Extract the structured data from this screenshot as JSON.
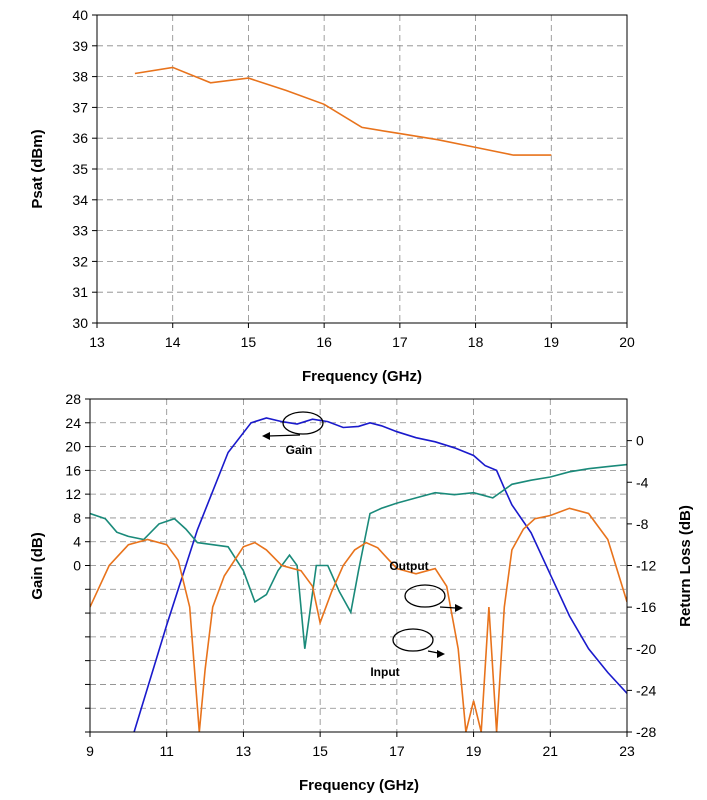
{
  "chart_data": [
    {
      "type": "line",
      "title": "",
      "xlabel": "Frequency (GHz)",
      "ylabel": "Psat (dBm)",
      "xlim": [
        13,
        20
      ],
      "ylim": [
        30,
        40
      ],
      "x_ticks": [
        "13",
        "14",
        "15",
        "16",
        "17",
        "18",
        "19",
        "20"
      ],
      "y_ticks": [
        "30",
        "31",
        "32",
        "33",
        "34",
        "35",
        "36",
        "37",
        "38",
        "39",
        "40"
      ],
      "grid": true,
      "series": [
        {
          "color": "#e8731c",
          "x": [
            13.5,
            14,
            14.5,
            15,
            15.5,
            16,
            16.5,
            17,
            17.5,
            18,
            18.5,
            19
          ],
          "y": [
            38.1,
            38.3,
            37.8,
            37.95,
            37.55,
            37.1,
            36.35,
            36.15,
            35.95,
            35.7,
            35.45,
            35.45
          ]
        }
      ]
    },
    {
      "type": "line",
      "title": "",
      "xlabel": "Frequency (GHz)",
      "ylabel": "Gain (dB)",
      "y2label": "Return Loss (dB)",
      "xlim": [
        9,
        23
      ],
      "ylim": [
        -28,
        28
      ],
      "y2lim": [
        -28,
        4
      ],
      "x_ticks": [
        "9",
        "11",
        "13",
        "15",
        "17",
        "19",
        "21",
        "23"
      ],
      "y_ticks": [
        "0",
        "4",
        "8",
        "12",
        "16",
        "20",
        "24",
        "28"
      ],
      "y2_ticks": [
        "0",
        "-4",
        "-8",
        "-12",
        "-16",
        "-20",
        "-24",
        "-28"
      ],
      "grid": true,
      "annotations": [
        "Gain",
        "Output",
        "Input"
      ],
      "series": [
        {
          "name": "Gain",
          "axis": "left",
          "color": "#1a1acc",
          "x": [
            10.15,
            11,
            11.8,
            12.6,
            13.2,
            13.6,
            14.0,
            14.4,
            14.8,
            15.2,
            15.6,
            16.0,
            16.3,
            16.6,
            17.0,
            17.5,
            18.0,
            18.5,
            19.0,
            19.3,
            19.6,
            19.8,
            20.0,
            20.5,
            21.0,
            21.5,
            22.0,
            22.5,
            23.0
          ],
          "y": [
            -28,
            -10,
            6,
            19,
            24.0,
            24.8,
            24.2,
            23.8,
            24.6,
            24.2,
            23.2,
            23.4,
            24.0,
            23.5,
            22.5,
            21.5,
            20.8,
            19.8,
            18.5,
            16.8,
            16.0,
            13.0,
            10.2,
            5.5,
            -1.5,
            -8.5,
            -14.0,
            -18.0,
            -21.5
          ]
        },
        {
          "name": "Output",
          "axis": "right",
          "color": "#1a8a7a",
          "x": [
            9,
            9.4,
            9.7,
            10.0,
            10.4,
            10.8,
            11.2,
            11.5,
            11.8,
            12.2,
            12.6,
            13.0,
            13.3,
            13.6,
            13.9,
            14.2,
            14.4,
            14.6,
            14.9,
            15.2,
            15.5,
            15.8,
            16.0,
            16.3,
            16.6,
            17.0,
            17.5,
            18.0,
            18.5,
            19.0,
            19.5,
            20.0,
            20.5,
            21.0,
            21.5,
            22.0,
            22.5,
            23.0
          ],
          "y": [
            -7.0,
            -7.5,
            -8.8,
            -9.2,
            -9.5,
            -8.0,
            -7.5,
            -8.5,
            -9.8,
            -10.0,
            -10.2,
            -12.5,
            -15.5,
            -14.8,
            -12.5,
            -11.0,
            -12.0,
            -20.0,
            -12.0,
            -12.0,
            -14.5,
            -16.5,
            -12.5,
            -7.0,
            -6.5,
            -6.0,
            -5.5,
            -5.0,
            -5.2,
            -5.0,
            -5.5,
            -4.2,
            -3.8,
            -3.5,
            -3.0,
            -2.7,
            -2.5,
            -2.3
          ]
        },
        {
          "name": "Input",
          "axis": "right",
          "color": "#e8731c",
          "x": [
            9,
            9.5,
            10.0,
            10.5,
            11.0,
            11.3,
            11.6,
            11.85,
            12.0,
            12.2,
            12.5,
            13.0,
            13.3,
            13.6,
            14.0,
            14.5,
            14.8,
            15.0,
            15.3,
            15.6,
            15.9,
            16.2,
            16.5,
            16.8,
            17.0,
            17.5,
            18.0,
            18.3,
            18.6,
            18.8,
            19.0,
            19.2,
            19.4,
            19.6,
            19.8,
            20.0,
            20.3,
            20.6,
            21.0,
            21.5,
            22.0,
            22.5,
            23.0
          ],
          "y": [
            -16.0,
            -12.0,
            -10.0,
            -9.5,
            -10.0,
            -11.5,
            -16.0,
            -28.0,
            -22.0,
            -16.0,
            -13.0,
            -10.2,
            -9.8,
            -10.5,
            -12.0,
            -12.5,
            -14.0,
            -17.5,
            -14.5,
            -12.0,
            -10.5,
            -9.8,
            -10.3,
            -11.5,
            -12.3,
            -12.8,
            -12.3,
            -14.0,
            -20.0,
            -28.0,
            -25.0,
            -28.0,
            -16.0,
            -28.0,
            -16.0,
            -10.5,
            -8.5,
            -7.5,
            -7.2,
            -6.5,
            -7.0,
            -9.5,
            -15.5
          ]
        }
      ]
    }
  ]
}
